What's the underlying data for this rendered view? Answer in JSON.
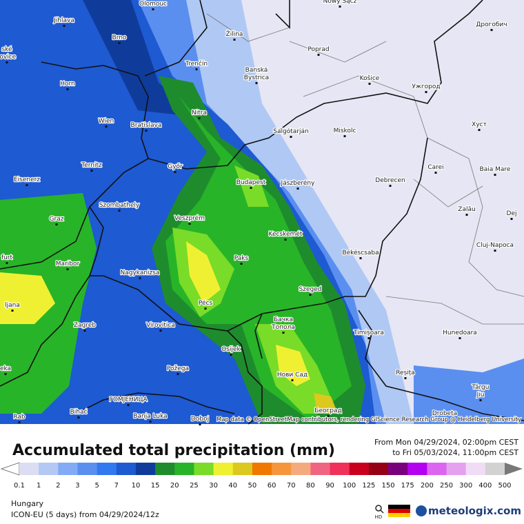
{
  "map": {
    "cities": [
      [
        "Olomouc"
      ],
      [
        "Nowy Sącz"
      ],
      [
        "Jihlava"
      ],
      [
        "Дрогобич"
      ],
      [
        "Žilina"
      ],
      [
        "Brno"
      ],
      [
        "Poprad"
      ],
      [
        "ské",
        "jovice"
      ],
      [
        "Trenčín"
      ],
      [
        "Banská",
        "Bystrica"
      ],
      [
        "Horn"
      ],
      [
        "Košice"
      ],
      [
        "Ужгород"
      ],
      [
        "Nitra"
      ],
      [
        "Wien"
      ],
      [
        "Bratislava"
      ],
      [
        "Хуст"
      ],
      [
        "Salgótarján"
      ],
      [
        "Miskolc"
      ],
      [
        "Ternitz"
      ],
      [
        "Győr"
      ],
      [
        "Carei"
      ],
      [
        "Baia Mare"
      ],
      [
        "Budapest"
      ],
      [
        "Jászberény"
      ],
      [
        "Debrecen"
      ],
      [
        "Eisenerz"
      ],
      [
        "Szombathely"
      ],
      [
        "Zalău"
      ],
      [
        "Graz"
      ],
      [
        "Veszprém"
      ],
      [
        "Dej"
      ],
      [
        "Kecskemét"
      ],
      [
        "Cluj-Napoca"
      ],
      [
        "furt"
      ],
      [
        "Maribor"
      ],
      [
        "Paks"
      ],
      [
        "Békéscsaba"
      ],
      [
        "Nagykanizsa"
      ],
      [
        "Szeged"
      ],
      [
        "ljana"
      ],
      [
        "Pécs"
      ],
      [
        "Бачка",
        "Топола"
      ],
      [
        "Zagreb"
      ],
      [
        "Virovitica"
      ],
      [
        "Timișoara"
      ],
      [
        "Hunedoara"
      ],
      [
        "eka"
      ],
      [
        "Osijek"
      ],
      [
        "Нови Сад"
      ],
      [
        "Požega"
      ],
      [
        "Reșița"
      ],
      [
        "Târgu",
        "Jiu"
      ],
      [
        "ГОМЈЕНИЦА"
      ],
      [
        "Bihać"
      ],
      [
        "Banja Luka"
      ],
      [
        "Doboj"
      ],
      [
        "Београд"
      ],
      [
        "Drobeta"
      ],
      [
        "Rab"
      ]
    ],
    "attribution": "Map data © OpenStreetMap contributors, rendering GIScience Research Group @ Heidelberg University"
  },
  "header": {
    "title": "Accumulated total precipitation (mm)",
    "from": "From Mon 04/29/2024, 02:00pm CEST",
    "to": "to Fri 05/03/2024, 11:00pm CEST"
  },
  "legend": {
    "labels": [
      "0.1",
      "1",
      "2",
      "3",
      "5",
      "7",
      "10",
      "15",
      "20",
      "25",
      "30",
      "40",
      "50",
      "60",
      "70",
      "80",
      "90",
      "100",
      "125",
      "150",
      "175",
      "200",
      "250",
      "300",
      "400",
      "500"
    ],
    "colors": [
      "#dcdcf2",
      "#b4c8f5",
      "#82aaf5",
      "#5a8ff0",
      "#3278f0",
      "#1e5ad2",
      "#0f3c9b",
      "#1e8c2d",
      "#28b428",
      "#78dc28",
      "#f0f032",
      "#dcc81e",
      "#f07800",
      "#f5963c",
      "#f5aa7d",
      "#f06482",
      "#f0325a",
      "#c8001e",
      "#960014",
      "#78007d",
      "#b400f0",
      "#dc64f0",
      "#e6a0f0",
      "#f0dcf5",
      "#d2d2d2"
    ]
  },
  "footer": {
    "region": "Hungary",
    "model": "ICON-EU (5 days) from  04/29/2024/12z",
    "hd": "HD",
    "brand": "meteologix.com"
  }
}
